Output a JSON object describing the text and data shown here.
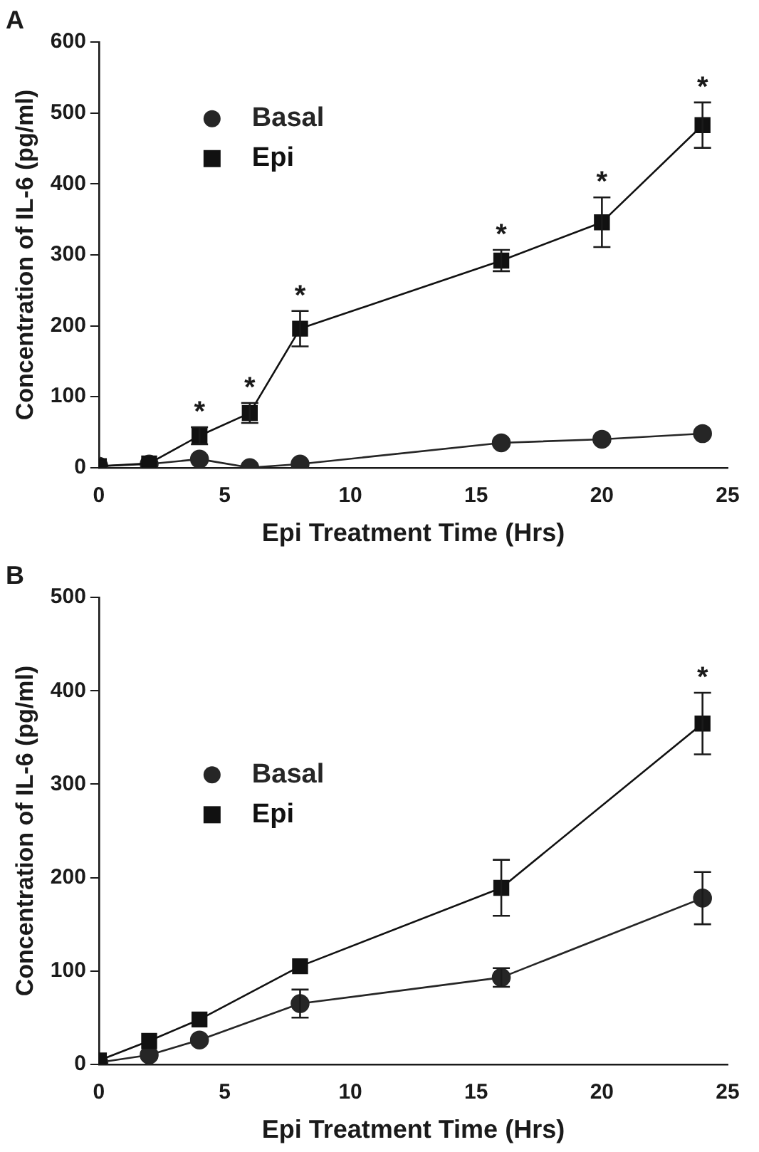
{
  "chart_data": [
    {
      "type": "line",
      "title": "A",
      "xlabel": "Epi Treatment Time (Hrs)",
      "ylabel": "Concentration of IL-6 (pg/ml)",
      "xlim": [
        0,
        25
      ],
      "xticks": [
        0,
        5,
        10,
        15,
        20,
        25
      ],
      "ylim": [
        0,
        600
      ],
      "yticks": [
        0,
        100,
        200,
        300,
        400,
        500,
        600
      ],
      "legend": "top left",
      "grid": false,
      "line_style": "solid",
      "series": [
        {
          "name": "Basal",
          "color": "#262626",
          "marker": "circle",
          "x": [
            0,
            2,
            4,
            6,
            8,
            16,
            20,
            24
          ],
          "values": [
            2,
            5,
            12,
            0,
            5,
            35,
            40,
            48
          ]
        },
        {
          "name": "Epi",
          "color": "#111111",
          "marker": "square",
          "x": [
            0,
            2,
            4,
            6,
            8,
            16,
            20,
            24
          ],
          "values": [
            2,
            6,
            45,
            77,
            196,
            292,
            346,
            483
          ],
          "errors": [
            null,
            null,
            12,
            14,
            25,
            15,
            35,
            32
          ]
        }
      ],
      "annotations": [
        "*",
        "*",
        "*",
        "*",
        "*",
        "*"
      ]
    },
    {
      "type": "line",
      "title": "B",
      "xlabel": "Epi Treatment Time (Hrs)",
      "ylabel": "Concentration of IL-6 (pg/ml)",
      "xlim": [
        0,
        25
      ],
      "xticks": [
        0,
        5,
        10,
        15,
        20,
        25
      ],
      "ylim": [
        0,
        500
      ],
      "yticks": [
        0,
        100,
        200,
        300,
        400,
        500
      ],
      "legend": "left",
      "grid": false,
      "line_style": "solid",
      "series": [
        {
          "name": "Basal",
          "color": "#262626",
          "marker": "circle",
          "x": [
            0,
            2,
            4,
            8,
            16,
            24
          ],
          "values": [
            2,
            10,
            26,
            65,
            93,
            178
          ],
          "errors": [
            null,
            null,
            null,
            15,
            10,
            28
          ]
        },
        {
          "name": "Epi",
          "color": "#111111",
          "marker": "square",
          "x": [
            0,
            2,
            4,
            8,
            16,
            24
          ],
          "values": [
            4,
            25,
            48,
            105,
            189,
            365
          ],
          "errors": [
            null,
            null,
            null,
            null,
            30,
            33
          ]
        }
      ],
      "annotations": [
        "*"
      ]
    }
  ]
}
